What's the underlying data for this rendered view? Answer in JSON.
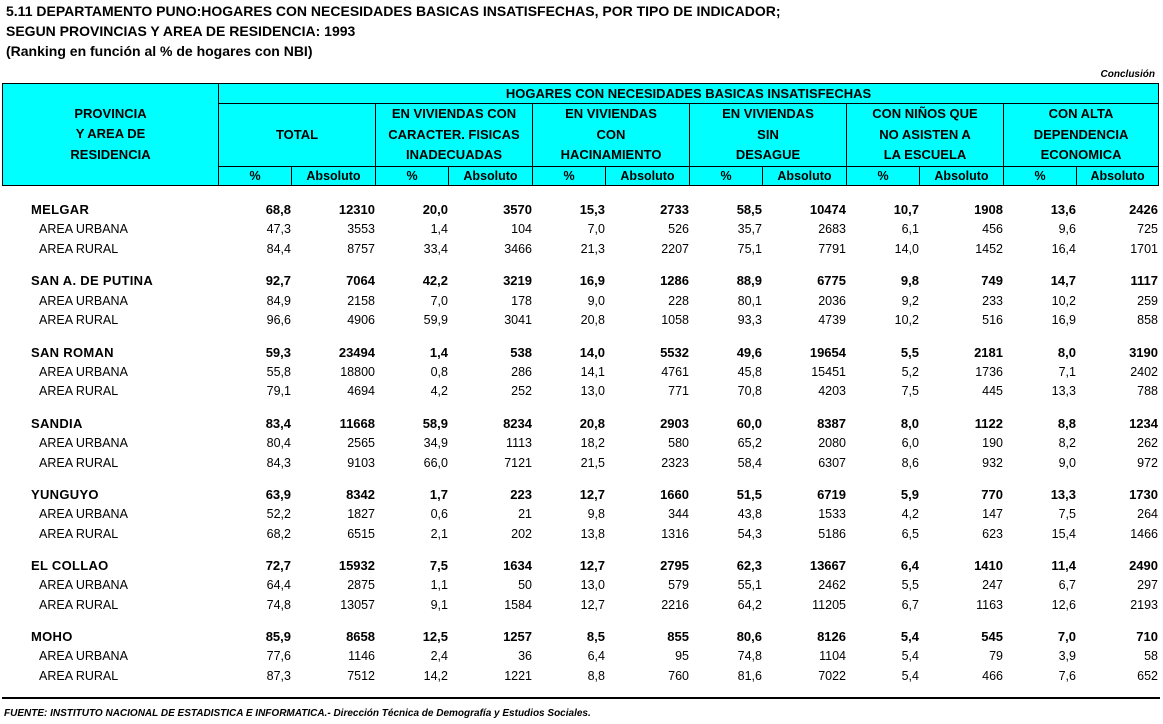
{
  "title": {
    "line1": "5.11  DEPARTAMENTO PUNO:HOGARES CON NECESIDADES BASICAS INSATISFECHAS, POR TIPO DE INDICADOR;",
    "line2": "SEGUN PROVINCIAS Y AREA DE RESIDENCIA: 1993",
    "line3": "(Ranking en función al % de hogares con NBI)"
  },
  "conclusion": "Conclusión",
  "header": {
    "province_col": [
      "PROVINCIA",
      "Y AREA DE",
      "RESIDENCIA"
    ],
    "main": "HOGARES CON NECESIDADES BASICAS INSATISFECHAS",
    "groups": [
      [
        "TOTAL"
      ],
      [
        "EN VIVIENDAS CON",
        "CARACTER. FISICAS",
        "INADECUADAS"
      ],
      [
        "EN VIVIENDAS",
        "CON",
        "HACINAMIENTO"
      ],
      [
        "EN VIVIENDAS",
        "SIN",
        "DESAGUE"
      ],
      [
        "CON NIÑOS QUE",
        "NO ASISTEN A",
        "LA ESCUELA"
      ],
      [
        "CON ALTA",
        "DEPENDENCIA",
        "ECONOMICA"
      ]
    ],
    "pct": "%",
    "abs": "Absoluto"
  },
  "provinces": [
    {
      "name": "MELGAR",
      "total": [
        "68,8",
        "12310",
        "20,0",
        "3570",
        "15,3",
        "2733",
        "58,5",
        "10474",
        "10,7",
        "1908",
        "13,6",
        "2426"
      ],
      "urbana": [
        "47,3",
        "3553",
        "1,4",
        "104",
        "7,0",
        "526",
        "35,7",
        "2683",
        "6,1",
        "456",
        "9,6",
        "725"
      ],
      "rural": [
        "84,4",
        "8757",
        "33,4",
        "3466",
        "21,3",
        "2207",
        "75,1",
        "7791",
        "14,0",
        "1452",
        "16,4",
        "1701"
      ]
    },
    {
      "name": "SAN A. DE PUTINA",
      "total": [
        "92,7",
        "7064",
        "42,2",
        "3219",
        "16,9",
        "1286",
        "88,9",
        "6775",
        "9,8",
        "749",
        "14,7",
        "1117"
      ],
      "urbana": [
        "84,9",
        "2158",
        "7,0",
        "178",
        "9,0",
        "228",
        "80,1",
        "2036",
        "9,2",
        "233",
        "10,2",
        "259"
      ],
      "rural": [
        "96,6",
        "4906",
        "59,9",
        "3041",
        "20,8",
        "1058",
        "93,3",
        "4739",
        "10,2",
        "516",
        "16,9",
        "858"
      ]
    },
    {
      "name": "SAN ROMAN",
      "total": [
        "59,3",
        "23494",
        "1,4",
        "538",
        "14,0",
        "5532",
        "49,6",
        "19654",
        "5,5",
        "2181",
        "8,0",
        "3190"
      ],
      "urbana": [
        "55,8",
        "18800",
        "0,8",
        "286",
        "14,1",
        "4761",
        "45,8",
        "15451",
        "5,2",
        "1736",
        "7,1",
        "2402"
      ],
      "rural": [
        "79,1",
        "4694",
        "4,2",
        "252",
        "13,0",
        "771",
        "70,8",
        "4203",
        "7,5",
        "445",
        "13,3",
        "788"
      ]
    },
    {
      "name": "SANDIA",
      "total": [
        "83,4",
        "11668",
        "58,9",
        "8234",
        "20,8",
        "2903",
        "60,0",
        "8387",
        "8,0",
        "1122",
        "8,8",
        "1234"
      ],
      "urbana": [
        "80,4",
        "2565",
        "34,9",
        "1113",
        "18,2",
        "580",
        "65,2",
        "2080",
        "6,0",
        "190",
        "8,2",
        "262"
      ],
      "rural": [
        "84,3",
        "9103",
        "66,0",
        "7121",
        "21,5",
        "2323",
        "58,4",
        "6307",
        "8,6",
        "932",
        "9,0",
        "972"
      ]
    },
    {
      "name": "YUNGUYO",
      "total": [
        "63,9",
        "8342",
        "1,7",
        "223",
        "12,7",
        "1660",
        "51,5",
        "6719",
        "5,9",
        "770",
        "13,3",
        "1730"
      ],
      "urbana": [
        "52,2",
        "1827",
        "0,6",
        "21",
        "9,8",
        "344",
        "43,8",
        "1533",
        "4,2",
        "147",
        "7,5",
        "264"
      ],
      "rural": [
        "68,2",
        "6515",
        "2,1",
        "202",
        "13,8",
        "1316",
        "54,3",
        "5186",
        "6,5",
        "623",
        "15,4",
        "1466"
      ]
    },
    {
      "name": "EL COLLAO",
      "total": [
        "72,7",
        "15932",
        "7,5",
        "1634",
        "12,7",
        "2795",
        "62,3",
        "13667",
        "6,4",
        "1410",
        "11,4",
        "2490"
      ],
      "urbana": [
        "64,4",
        "2875",
        "1,1",
        "50",
        "13,0",
        "579",
        "55,1",
        "2462",
        "5,5",
        "247",
        "6,7",
        "297"
      ],
      "rural": [
        "74,8",
        "13057",
        "9,1",
        "1584",
        "12,7",
        "2216",
        "64,2",
        "11205",
        "6,7",
        "1163",
        "12,6",
        "2193"
      ]
    },
    {
      "name": "MOHO",
      "total": [
        "85,9",
        "8658",
        "12,5",
        "1257",
        "8,5",
        "855",
        "80,6",
        "8126",
        "5,4",
        "545",
        "7,0",
        "710"
      ],
      "urbana": [
        "77,6",
        "1146",
        "2,4",
        "36",
        "6,4",
        "95",
        "74,8",
        "1104",
        "5,4",
        "79",
        "3,9",
        "58"
      ],
      "rural": [
        "87,3",
        "7512",
        "14,2",
        "1221",
        "8,8",
        "760",
        "81,6",
        "7022",
        "5,4",
        "466",
        "7,6",
        "652"
      ]
    }
  ],
  "area_labels": {
    "urbana": "AREA URBANA",
    "rural": "AREA RURAL"
  },
  "footer": "FUENTE: INSTITUTO NACIONAL DE ESTADISTICA E INFORMATICA.- Dirección Técnica de Demografía y Estudios Sociales.",
  "colors": {
    "header_bg": "#00ffff"
  }
}
